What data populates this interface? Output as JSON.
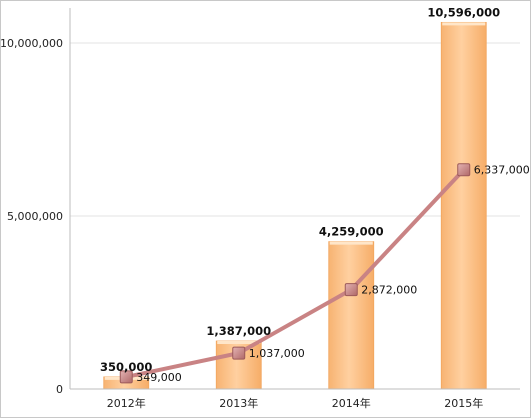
{
  "chart_data": {
    "type": "bar",
    "categories": [
      "2012年",
      "2013年",
      "2014年",
      "2015年"
    ],
    "series": [
      {
        "type": "bar",
        "values": [
          350000,
          1387000,
          4259000,
          10596000
        ],
        "labels": [
          "350,000",
          "1,387,000",
          "4,259,000",
          "10,596,000"
        ],
        "color": "#ffc994"
      },
      {
        "type": "line",
        "values": [
          349000,
          1037000,
          2872000,
          6337000
        ],
        "labels": [
          "349,000",
          "1,037,000",
          "2,872,000",
          "6,337,000"
        ],
        "color": "#c98384"
      }
    ],
    "y_ticks": [
      {
        "value": 0,
        "label": "0"
      },
      {
        "value": 5000000,
        "label": "5,000,000"
      },
      {
        "value": 10000000,
        "label": "10,000,000"
      }
    ],
    "ylim": [
      0,
      11000000
    ],
    "grid": true,
    "title": "",
    "xlabel": "",
    "ylabel": ""
  }
}
